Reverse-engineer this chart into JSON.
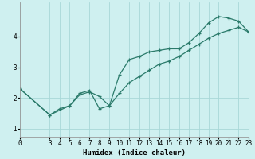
{
  "xlabel": "Humidex (Indice chaleur)",
  "ylabel": "",
  "bg_color": "#cff0f0",
  "line_color": "#2a7a6a",
  "marker": "+",
  "line1_x": [
    0,
    3,
    4,
    5,
    6,
    7,
    8,
    9,
    10,
    11,
    12,
    13,
    14,
    15,
    16,
    17,
    18,
    19,
    20,
    21,
    22,
    23
  ],
  "line1_y": [
    2.3,
    1.45,
    1.65,
    1.75,
    2.15,
    2.25,
    1.65,
    1.75,
    2.75,
    3.25,
    3.35,
    3.5,
    3.55,
    3.6,
    3.6,
    3.8,
    4.1,
    4.45,
    4.65,
    4.6,
    4.5,
    4.15
  ],
  "line2_x": [
    0,
    3,
    5,
    6,
    7,
    8,
    9,
    10,
    11,
    12,
    13,
    14,
    15,
    16,
    17,
    18,
    19,
    20,
    21,
    22,
    23
  ],
  "line2_y": [
    2.3,
    1.45,
    1.75,
    2.1,
    2.2,
    2.05,
    1.75,
    2.15,
    2.5,
    2.7,
    2.9,
    3.1,
    3.2,
    3.35,
    3.55,
    3.75,
    3.95,
    4.1,
    4.2,
    4.3,
    4.15
  ],
  "xlim": [
    0,
    23
  ],
  "ylim": [
    0.75,
    5.1
  ],
  "xticks": [
    0,
    3,
    4,
    5,
    6,
    7,
    8,
    9,
    10,
    11,
    12,
    13,
    14,
    15,
    16,
    17,
    18,
    19,
    20,
    21,
    22,
    23
  ],
  "yticks": [
    1,
    2,
    3,
    4
  ],
  "grid_color": "#a8d8d8",
  "grid_lw": 0.6,
  "axis_fontsize": 6.5,
  "tick_fontsize": 5.5,
  "lw": 0.9,
  "markersize": 3.5,
  "markeredgewidth": 0.9
}
